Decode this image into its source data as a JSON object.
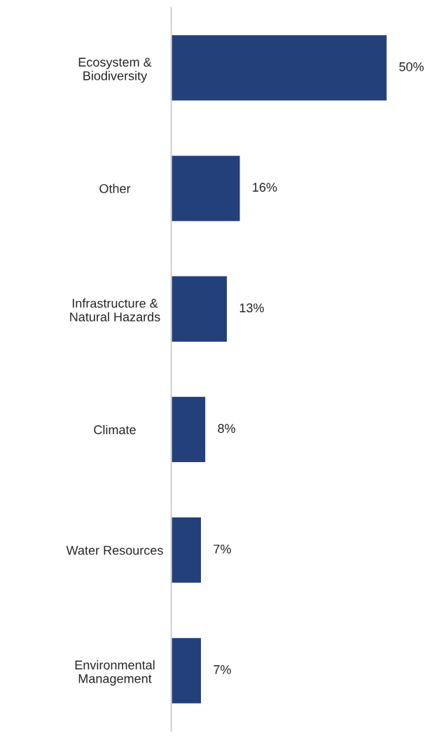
{
  "chart_data": {
    "type": "bar",
    "orientation": "horizontal",
    "categories": [
      "Ecosystem &\nBiodiversity",
      "Other",
      "Infrastructure &\nNatural Hazards",
      "Climate",
      "Water Resources",
      "Environmental\nManagement"
    ],
    "values": [
      50,
      16,
      13,
      8,
      7,
      7
    ],
    "value_labels": [
      "50%",
      "16%",
      "13%",
      "8%",
      "7%",
      "7%"
    ],
    "color": "#23407a",
    "grid": false,
    "legend": false
  }
}
